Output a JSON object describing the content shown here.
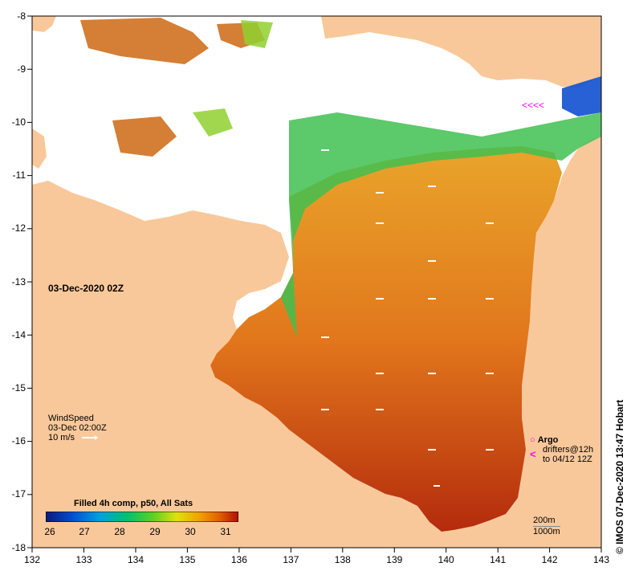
{
  "map": {
    "date_label": "03-Dec-2020 02Z",
    "x_ticks": [
      "132",
      "133",
      "134",
      "135",
      "136",
      "137",
      "138",
      "139",
      "140",
      "141",
      "142",
      "143"
    ],
    "y_ticks": [
      "-8",
      "-9",
      "-10",
      "-11",
      "-12",
      "-13",
      "-14",
      "-15",
      "-16",
      "-17",
      "-18"
    ],
    "wind": {
      "line1": "WindSpeed",
      "line2": "03-Dec 02:00Z",
      "line3": "10 m/s"
    },
    "colorbar": {
      "title": "Filled 4h comp, p50, All Sats",
      "ticks": [
        "26",
        "27",
        "28",
        "29",
        "30",
        "31"
      ],
      "colors": [
        "#0a1a7a",
        "#0050d0",
        "#00a0e0",
        "#00c070",
        "#60d020",
        "#e0e010",
        "#f0a000",
        "#e06000",
        "#b01000"
      ]
    },
    "argo": {
      "marker": "○",
      "title": "Argo",
      "line1": "drifters@12h",
      "arrow": "<",
      "line2": "to 04/12 12Z"
    },
    "depth": {
      "line1": "200m",
      "line2": "1000m"
    },
    "credit": "© IMOS 07-Dec-2020 13:47 Hobart",
    "colors": {
      "land": "#f9c89a",
      "nodata": "#ffffff",
      "frame": "#000000",
      "argo": "#ff00ff"
    }
  }
}
